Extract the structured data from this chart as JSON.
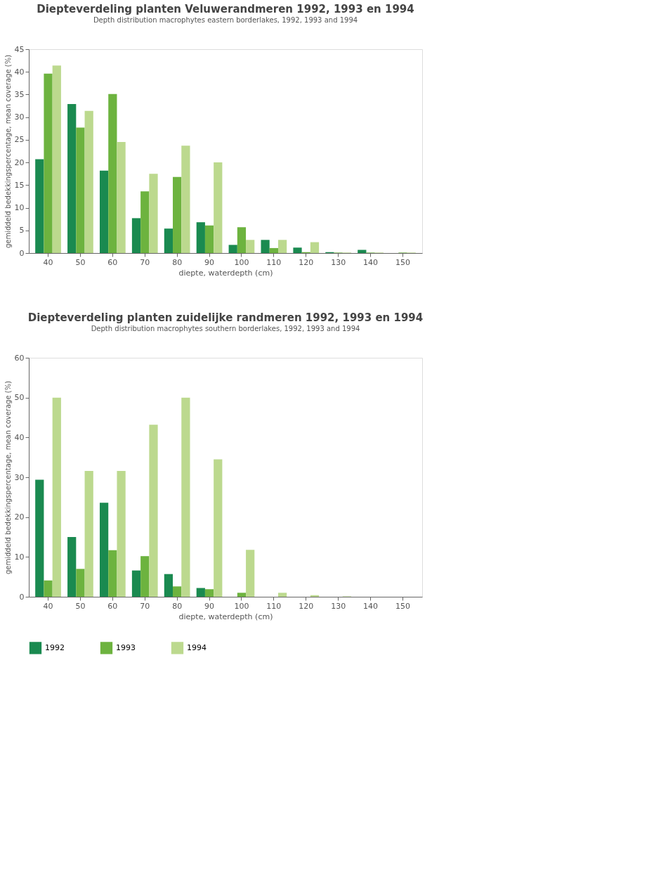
{
  "chart_data": [
    {
      "type": "bar",
      "title": "Diepteverdeling planten Veluwerandmeren 1992, 1993 en 1994",
      "subtitle": "Depth distribution macrophytes eastern borderlakes, 1992, 1993 and 1994",
      "xlabel": "diepte, waterdepth (cm)",
      "ylabel": "gemiddeld bedekkingspercentage, mean coverage (%)",
      "categories": [
        "40",
        "50",
        "60",
        "70",
        "80",
        "90",
        "100",
        "110",
        "120",
        "130",
        "140",
        "150"
      ],
      "series": [
        {
          "color": "#1a8a50",
          "values": [
            20.7,
            32.9,
            18.2,
            7.7,
            5.4,
            6.8,
            1.8,
            2.9,
            1.2,
            0.2,
            0.7,
            0
          ]
        },
        {
          "color": "#6db33f",
          "values": [
            39.6,
            27.7,
            35.1,
            13.6,
            16.8,
            6.1,
            5.7,
            1.1,
            0.2,
            0.1,
            0.1,
            0.1
          ]
        },
        {
          "color": "#bcd98e",
          "values": [
            41.4,
            31.4,
            24.5,
            17.5,
            23.7,
            20.0,
            2.9,
            2.9,
            2.4,
            0.1,
            0.1,
            0.1
          ]
        }
      ],
      "ylim": [
        0,
        45
      ],
      "yticks": [
        0,
        5,
        10,
        15,
        20,
        25,
        30,
        35,
        40,
        45
      ],
      "grid": false,
      "legend": false
    },
    {
      "type": "bar",
      "title": "Diepteverdeling planten zuidelijke randmeren 1992, 1993 en 1994",
      "subtitle": "Depth distribution macrophytes southern borderlakes, 1992, 1993 and 1994",
      "xlabel": "diepte, waterdepth (cm)",
      "ylabel": "gemiddeld bedekkingspercentage, mean coverage (%)",
      "categories": [
        "40",
        "50",
        "60",
        "70",
        "80",
        "90",
        "100",
        "110",
        "120",
        "130",
        "140",
        "150"
      ],
      "series": [
        {
          "name": "1992",
          "color": "#1a8a50",
          "values": [
            29.4,
            15.0,
            23.6,
            6.6,
            5.7,
            2.2,
            0,
            0,
            0,
            0,
            0,
            0
          ]
        },
        {
          "name": "1993",
          "color": "#6db33f",
          "values": [
            4.1,
            7.0,
            11.7,
            10.2,
            2.6,
            1.9,
            1.0,
            0,
            0,
            0,
            0,
            0
          ]
        },
        {
          "name": "1994",
          "color": "#bcd98e",
          "values": [
            50.0,
            31.6,
            31.6,
            43.2,
            50.0,
            34.5,
            11.8,
            1.0,
            0.4,
            0.1,
            0,
            0
          ]
        }
      ],
      "ylim": [
        0,
        60
      ],
      "yticks": [
        0,
        10,
        20,
        30,
        40,
        50,
        60
      ],
      "grid": false,
      "legend": "bottom"
    }
  ]
}
